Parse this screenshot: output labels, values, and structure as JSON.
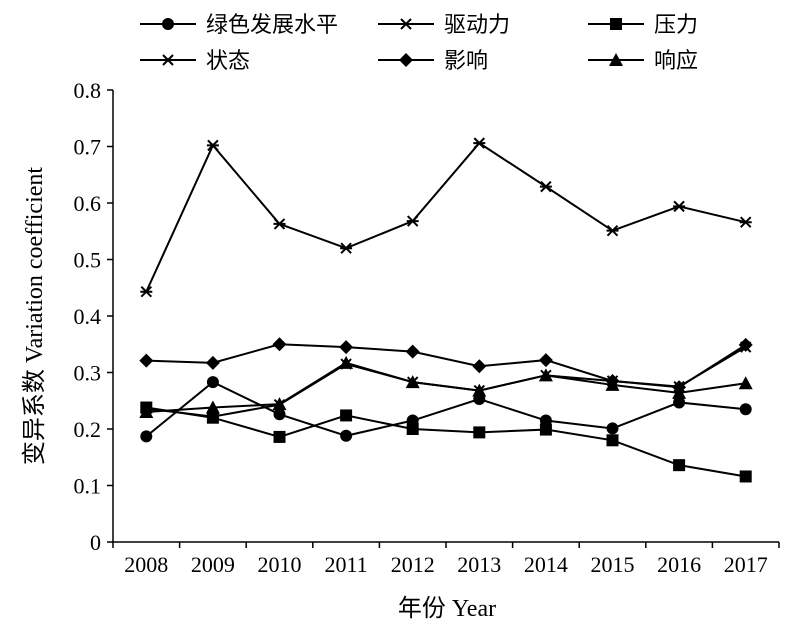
{
  "chart_data": {
    "type": "line",
    "title": "",
    "xlabel": "年份 Year",
    "ylabel": "变异系数 Variation coefficient",
    "x": [
      "2008",
      "2009",
      "2010",
      "2011",
      "2012",
      "2013",
      "2014",
      "2015",
      "2016",
      "2017"
    ],
    "ylim": [
      0,
      0.8
    ],
    "yticks": [
      "0",
      "0.1",
      "0.2",
      "0.3",
      "0.4",
      "0.5",
      "0.6",
      "0.7",
      "0.8"
    ],
    "grid": false,
    "legend_position": "top",
    "series": [
      {
        "name": "绿色发展水平",
        "marker": "circle",
        "values": [
          0.187,
          0.283,
          0.226,
          0.188,
          0.215,
          0.253,
          0.215,
          0.201,
          0.247,
          0.235
        ]
      },
      {
        "name": "驱动力",
        "marker": "x",
        "values": [
          0.236,
          0.222,
          0.243,
          0.315,
          0.283,
          0.268,
          0.295,
          0.285,
          0.275,
          0.345
        ]
      },
      {
        "name": "压力",
        "marker": "square",
        "values": [
          0.238,
          0.22,
          0.186,
          0.224,
          0.2,
          0.194,
          0.199,
          0.18,
          0.136,
          0.116
        ]
      },
      {
        "name": "状态",
        "marker": "asterisk",
        "values": [
          0.443,
          0.702,
          0.563,
          0.52,
          0.568,
          0.706,
          0.629,
          0.551,
          0.594,
          0.566
        ]
      },
      {
        "name": "影响",
        "marker": "diamond",
        "values": [
          0.321,
          0.317,
          0.35,
          0.345,
          0.337,
          0.311,
          0.322,
          0.285,
          0.274,
          0.349
        ]
      },
      {
        "name": "响应",
        "marker": "triangle",
        "values": [
          0.23,
          0.238,
          0.244,
          0.317,
          0.283,
          0.268,
          0.295,
          0.278,
          0.264,
          0.281
        ]
      }
    ],
    "extra_series_note_hidden": ""
  }
}
